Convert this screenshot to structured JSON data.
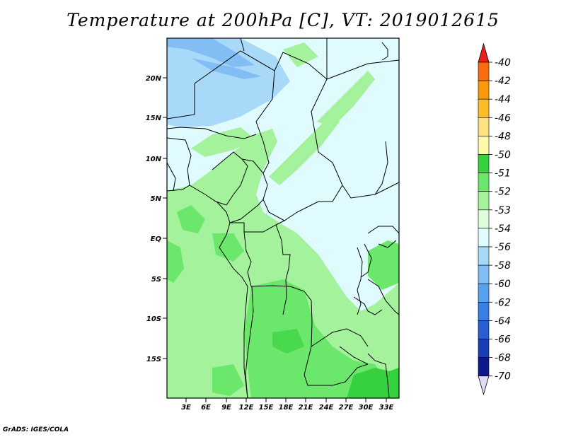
{
  "title": "Temperature at 200hPa [C], VT: 2019012615",
  "credit": "GrADS: IGES/COLA",
  "lat_labels": [
    "20N",
    "15N",
    "10N",
    "5N",
    "EQ",
    "5S",
    "10S",
    "15S"
  ],
  "lon_labels": [
    "3E",
    "6E",
    "9E",
    "12E",
    "15E",
    "18E",
    "21E",
    "24E",
    "27E",
    "30E",
    "33E"
  ],
  "colorbar": {
    "labels": [
      "-40",
      "-42",
      "-44",
      "-46",
      "-48",
      "-50",
      "-51",
      "-52",
      "-53",
      "-54",
      "-56",
      "-58",
      "-60",
      "-62",
      "-64",
      "-66",
      "-68",
      "-70"
    ],
    "colors": [
      "#f03c14",
      "#f96c0f",
      "#fa9a0b",
      "#fbbd2a",
      "#fde27f",
      "#fffaaa",
      "#37d13f",
      "#6be76b",
      "#a5f29c",
      "#dcfcda",
      "#dffbfd",
      "#a9d9f8",
      "#82bdf4",
      "#5aa0f0",
      "#3a7fe4",
      "#2a5fd2",
      "#1a3eb5",
      "#0e1a8a"
    ],
    "top_arrow_color": "#e8211a",
    "bottom_arrow_color": "#e0dcf5"
  }
}
